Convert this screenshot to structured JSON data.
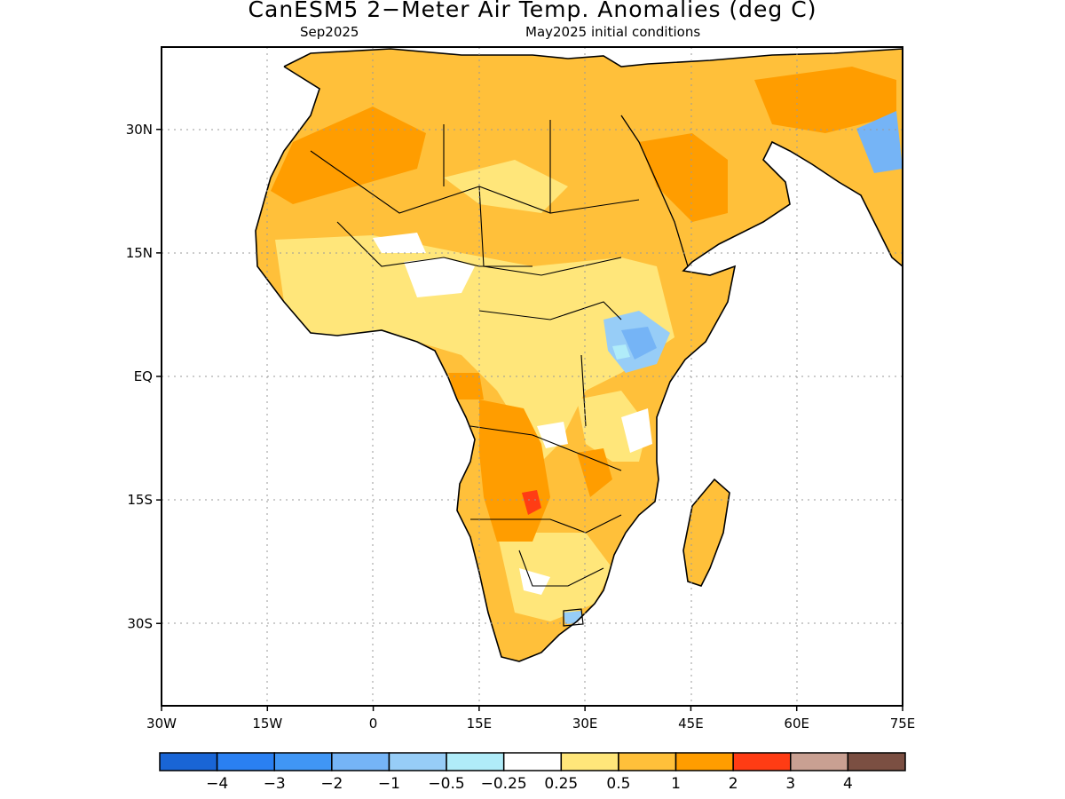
{
  "title": "CanESM5 2−Meter Air Temp. Anomalies (deg C)",
  "subtitle_left": "Sep2025",
  "subtitle_right": "May2025 initial conditions",
  "map": {
    "projection": "lat-lon",
    "lon_range": [
      -30,
      75
    ],
    "lat_range": [
      -40,
      40
    ],
    "lon_ticks": [
      {
        "value": -30,
        "label": "30W"
      },
      {
        "value": -15,
        "label": "15W"
      },
      {
        "value": 0,
        "label": "0"
      },
      {
        "value": 15,
        "label": "15E"
      },
      {
        "value": 30,
        "label": "30E"
      },
      {
        "value": 45,
        "label": "45E"
      },
      {
        "value": 60,
        "label": "60E"
      },
      {
        "value": 75,
        "label": "75E"
      }
    ],
    "lat_ticks": [
      {
        "value": 30,
        "label": "30N"
      },
      {
        "value": 15,
        "label": "15N"
      },
      {
        "value": 0,
        "label": "EQ"
      },
      {
        "value": -15,
        "label": "15S"
      },
      {
        "value": -30,
        "label": "30S"
      }
    ],
    "grid": "dotted",
    "features": [
      {
        "name": "North Africa",
        "anomaly_class": "0.5–1",
        "value": 0.8
      },
      {
        "name": "Arabian Peninsula",
        "anomaly_class": "1–2",
        "value": 1.2
      },
      {
        "name": "Sahel",
        "anomaly_class": "0.25–0.5",
        "value": 0.3
      },
      {
        "name": "East Africa highlands",
        "anomaly_class": "−1 to −0.5",
        "value": -0.6
      },
      {
        "name": "Angola–Zambia",
        "anomaly_class": "1–2",
        "value": 1.4
      },
      {
        "name": "Zambia hotspot",
        "anomaly_class": "2–3",
        "value": 2.4
      },
      {
        "name": "South Asia coast",
        "anomaly_class": "−1 to −0.5",
        "value": -0.7
      },
      {
        "name": "Madagascar",
        "anomaly_class": "0.5–1",
        "value": 0.7
      },
      {
        "name": "Lesotho",
        "anomaly_class": "−0.5 to −0.25",
        "value": -0.3
      }
    ]
  },
  "colorbar": {
    "colors": [
      "#1965d6",
      "#2a80f2",
      "#4096f5",
      "#75b4f6",
      "#97cdf7",
      "#b0ecf9",
      "#ffffff",
      "#ffe67a",
      "#ffc03a",
      "#ff9d00",
      "#ff3c14",
      "#c9a092",
      "#7b4f42"
    ],
    "labels": [
      "−4",
      "−3",
      "−2",
      "−1",
      "−0.5",
      "−0.25",
      "0.25",
      "0.5",
      "1",
      "2",
      "3",
      "4"
    ]
  },
  "colors": {
    "c05": "#ffe67a",
    "c1": "#ffc03a",
    "c2": "#ff9d00",
    "c3": "#ff3c14",
    "neg1": "#75b4f6",
    "neg05": "#97cdf7",
    "neg025": "#b0ecf9"
  }
}
